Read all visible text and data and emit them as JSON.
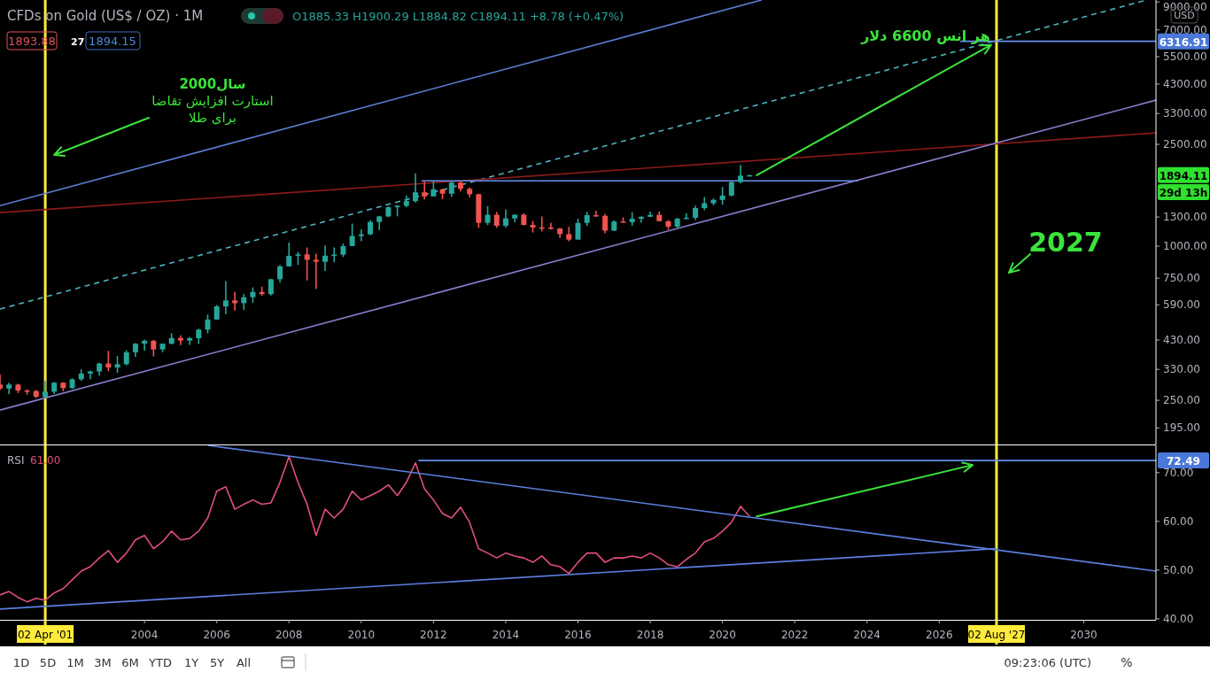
{
  "chart_data": [
    {
      "type": "candlestick",
      "title": "CFDs on Gold (US$ / OZ) · 1M",
      "subtitle": "O1885.33 H1900.29 L1884.82 C1894.11 +8.78 (+0.47%)",
      "ylabel": "USD",
      "log": "y",
      "tick_labels": "y",
      "xlim": [
        "2000-01",
        "2032-01"
      ],
      "ylim": [
        168,
        9160
      ],
      "yticks": [
        {
          "value": 195,
          "label": "195.00"
        },
        {
          "value": 250,
          "label": "250.00"
        },
        {
          "value": 330,
          "label": "330.00"
        },
        {
          "value": 430,
          "label": "430.00"
        },
        {
          "value": 590,
          "label": "590.00"
        },
        {
          "value": 750,
          "label": "750.00"
        },
        {
          "value": 1000,
          "label": "1000.00"
        },
        {
          "value": 1300,
          "label": "1300.00"
        },
        {
          "value": 2500,
          "label": "2500.00"
        },
        {
          "value": 3300,
          "label": "3300.00"
        },
        {
          "value": 4300,
          "label": "4300.00"
        },
        {
          "value": 5500,
          "label": "5500.00"
        },
        {
          "value": 7000,
          "label": "7000.00"
        },
        {
          "value": 9000,
          "label": "9000.00"
        }
      ],
      "x": [
        "2000-01",
        "2000-04",
        "2000-07",
        "2000-10",
        "2001-01",
        "2001-04",
        "2001-07",
        "2001-10",
        "2002-01",
        "2002-04",
        "2002-07",
        "2002-10",
        "2003-01",
        "2003-04",
        "2003-07",
        "2003-10",
        "2004-01",
        "2004-04",
        "2004-07",
        "2004-10",
        "2005-01",
        "2005-04",
        "2005-07",
        "2005-10",
        "2006-01",
        "2006-04",
        "2006-07",
        "2006-10",
        "2007-01",
        "2007-04",
        "2007-07",
        "2007-10",
        "2008-01",
        "2008-04",
        "2008-07",
        "2008-10",
        "2009-01",
        "2009-04",
        "2009-07",
        "2009-10",
        "2010-01",
        "2010-04",
        "2010-07",
        "2010-10",
        "2011-01",
        "2011-04",
        "2011-07",
        "2011-10",
        "2012-01",
        "2012-04",
        "2012-07",
        "2012-10",
        "2013-01",
        "2013-04",
        "2013-07",
        "2013-10",
        "2014-01",
        "2014-04",
        "2014-07",
        "2014-10",
        "2015-01",
        "2015-04",
        "2015-07",
        "2015-10",
        "2016-01",
        "2016-04",
        "2016-07",
        "2016-10",
        "2017-01",
        "2017-04",
        "2017-07",
        "2017-10",
        "2018-01",
        "2018-04",
        "2018-07",
        "2018-10",
        "2019-01",
        "2019-04",
        "2019-07",
        "2019-10",
        "2020-01",
        "2020-04",
        "2020-07",
        "2020-10"
      ],
      "ohlc": [
        [
          288,
          316,
          274,
          278
        ],
        [
          278,
          293,
          264,
          288
        ],
        [
          288,
          290,
          267,
          273
        ],
        [
          273,
          276,
          263,
          272
        ],
        [
          272,
          274,
          255,
          258
        ],
        [
          258,
          298,
          255,
          270
        ],
        [
          270,
          294,
          265,
          293
        ],
        [
          293,
          294,
          271,
          279
        ],
        [
          279,
          305,
          277,
          302
        ],
        [
          302,
          330,
          298,
          318
        ],
        [
          318,
          327,
          302,
          324
        ],
        [
          324,
          350,
          312,
          348
        ],
        [
          348,
          390,
          325,
          336
        ],
        [
          336,
          373,
          320,
          346
        ],
        [
          346,
          392,
          342,
          385
        ],
        [
          385,
          418,
          370,
          416
        ],
        [
          416,
          432,
          390,
          427
        ],
        [
          427,
          430,
          371,
          395
        ],
        [
          395,
          416,
          385,
          416
        ],
        [
          416,
          457,
          413,
          438
        ],
        [
          438,
          448,
          411,
          428
        ],
        [
          428,
          442,
          412,
          437
        ],
        [
          437,
          476,
          415,
          472
        ],
        [
          472,
          541,
          456,
          517
        ],
        [
          517,
          589,
          516,
          582
        ],
        [
          582,
          730,
          542,
          614
        ],
        [
          614,
          664,
          560,
          599
        ],
        [
          599,
          650,
          563,
          632
        ],
        [
          632,
          690,
          600,
          662
        ],
        [
          662,
          695,
          640,
          650
        ],
        [
          650,
          745,
          642,
          743
        ],
        [
          743,
          845,
          722,
          834
        ],
        [
          834,
          1033,
          832,
          917
        ],
        [
          917,
          950,
          845,
          929
        ],
        [
          929,
          988,
          735,
          885
        ],
        [
          885,
          935,
          681,
          869
        ],
        [
          869,
          1006,
          800,
          918
        ],
        [
          918,
          989,
          865,
          927
        ],
        [
          927,
          1024,
          908,
          1001
        ],
        [
          1001,
          1226,
          1000,
          1096
        ],
        [
          1096,
          1161,
          1045,
          1113
        ],
        [
          1113,
          1265,
          1106,
          1244
        ],
        [
          1244,
          1314,
          1157,
          1307
        ],
        [
          1307,
          1431,
          1300,
          1420
        ],
        [
          1420,
          1447,
          1308,
          1439
        ],
        [
          1439,
          1577,
          1418,
          1500
        ],
        [
          1500,
          1921,
          1480,
          1624
        ],
        [
          1624,
          1803,
          1523,
          1565
        ],
        [
          1565,
          1791,
          1563,
          1668
        ],
        [
          1668,
          1679,
          1527,
          1604
        ],
        [
          1604,
          1788,
          1558,
          1772
        ],
        [
          1772,
          1796,
          1635,
          1675
        ],
        [
          1675,
          1697,
          1555,
          1596
        ],
        [
          1596,
          1605,
          1180,
          1234
        ],
        [
          1234,
          1434,
          1208,
          1327
        ],
        [
          1327,
          1361,
          1180,
          1202
        ],
        [
          1202,
          1392,
          1182,
          1284
        ],
        [
          1284,
          1332,
          1240,
          1327
        ],
        [
          1327,
          1345,
          1206,
          1211
        ],
        [
          1211,
          1255,
          1131,
          1184
        ],
        [
          1184,
          1307,
          1142,
          1183
        ],
        [
          1183,
          1232,
          1162,
          1172
        ],
        [
          1172,
          1178,
          1077,
          1115
        ],
        [
          1115,
          1191,
          1046,
          1061
        ],
        [
          1061,
          1282,
          1061,
          1233
        ],
        [
          1233,
          1362,
          1200,
          1322
        ],
        [
          1322,
          1375,
          1305,
          1315
        ],
        [
          1315,
          1337,
          1123,
          1151
        ],
        [
          1151,
          1263,
          1146,
          1249
        ],
        [
          1249,
          1296,
          1240,
          1241
        ],
        [
          1241,
          1357,
          1204,
          1280
        ],
        [
          1280,
          1307,
          1236,
          1303
        ],
        [
          1303,
          1366,
          1302,
          1325
        ],
        [
          1325,
          1366,
          1250,
          1252
        ],
        [
          1252,
          1265,
          1160,
          1192
        ],
        [
          1192,
          1287,
          1180,
          1282
        ],
        [
          1282,
          1347,
          1276,
          1292
        ],
        [
          1292,
          1439,
          1266,
          1409
        ],
        [
          1409,
          1557,
          1382,
          1472
        ],
        [
          1472,
          1535,
          1445,
          1517
        ],
        [
          1517,
          1703,
          1451,
          1577
        ],
        [
          1577,
          1790,
          1567,
          1781
        ],
        [
          1781,
          2075,
          1757,
          1886
        ],
        [
          1885.33,
          1900.29,
          1884.82,
          1894.11
        ]
      ],
      "series": [
        {
          "type": "line",
          "color": "#5b7fd6",
          "x": [
            "2000-01",
            "2021-02"
          ],
          "values": [
            1440,
            9160
          ]
        },
        {
          "type": "line",
          "color": "#4fb3bf",
          "line_style": "dashed",
          "x": [
            "2000-01",
            "2031-09"
          ],
          "values": [
            568,
            9100
          ]
        },
        {
          "type": "line",
          "color": "#8b1a1a",
          "x": [
            "2000-01",
            "2032-01"
          ],
          "values": [
            1353,
            2770
          ]
        },
        {
          "type": "line",
          "color": "#8a7fd0",
          "x": [
            "2000-01",
            "2032-01"
          ],
          "values": [
            229,
            3720
          ]
        },
        {
          "type": "line",
          "color": "#6a8ff0",
          "x": [
            "2011-09",
            "2023-10"
          ],
          "values": [
            1800,
            1800
          ]
        },
        {
          "type": "line",
          "color": "#6a8ff0",
          "x": [
            "2026-08",
            "2032-01"
          ],
          "values": [
            6316.91,
            6316.91
          ]
        }
      ],
      "ref_lines": [
        {
          "axis": "x",
          "value": "2001-04-02",
          "label": "02 Apr '01",
          "color": "#ffeb3b"
        },
        {
          "axis": "x",
          "value": "2027-08-02",
          "label": "02 Aug '27",
          "color": "#ffeb3b"
        }
      ],
      "annotations": [
        {
          "text": "هر انس 6600 دلار",
          "x": "2027-08",
          "y": 6316.91
        },
        "سال2000\nاستارت افزایش تقاضا\nبرای طلا",
        {
          "text": "2027",
          "x": "2027-08",
          "y": 787
        },
        {
          "text": "6316.91",
          "x": "2032-01",
          "y": 6316.91
        },
        "1894.11",
        "29d 13h",
        "1893.88",
        "27",
        "1894.15"
      ]
    },
    {
      "type": "line",
      "title": "RSI",
      "subtitle": "61.00",
      "xlim": [
        "2000-01",
        "2032-01"
      ],
      "ylim": [
        39.8,
        75.6
      ],
      "xticks": [
        "2004",
        "2006",
        "2008",
        "2010",
        "2012",
        "2014",
        "2016",
        "2018",
        "2020",
        "2022",
        "2024",
        "2026",
        "2030"
      ],
      "yticks": [
        {
          "value": 40,
          "label": "40.00"
        },
        {
          "value": 50,
          "label": "50.00"
        },
        {
          "value": 60,
          "label": "60.00"
        },
        {
          "value": 70,
          "label": "70.00"
        }
      ],
      "series": [
        {
          "color": "#e0507a",
          "x": [
            "2000-01",
            "2000-04",
            "2000-07",
            "2000-10",
            "2001-01",
            "2001-04",
            "2001-07",
            "2001-10",
            "2002-01",
            "2002-04",
            "2002-07",
            "2002-10",
            "2003-01",
            "2003-04",
            "2003-07",
            "2003-10",
            "2004-01",
            "2004-04",
            "2004-07",
            "2004-10",
            "2005-01",
            "2005-04",
            "2005-07",
            "2005-10",
            "2006-01",
            "2006-04",
            "2006-07",
            "2006-10",
            "2007-01",
            "2007-04",
            "2007-07",
            "2007-10",
            "2008-01",
            "2008-04",
            "2008-07",
            "2008-10",
            "2009-01",
            "2009-04",
            "2009-07",
            "2009-10",
            "2010-01",
            "2010-04",
            "2010-07",
            "2010-10",
            "2011-01",
            "2011-04",
            "2011-07",
            "2011-10",
            "2012-01",
            "2012-04",
            "2012-07",
            "2012-10",
            "2013-01",
            "2013-04",
            "2013-07",
            "2013-10",
            "2014-01",
            "2014-04",
            "2014-07",
            "2014-10",
            "2015-01",
            "2015-04",
            "2015-07",
            "2015-10",
            "2016-01",
            "2016-04",
            "2016-07",
            "2016-10",
            "2017-01",
            "2017-04",
            "2017-07",
            "2017-10",
            "2018-01",
            "2018-04",
            "2018-07",
            "2018-10",
            "2019-01",
            "2019-04",
            "2019-07",
            "2019-10",
            "2020-01",
            "2020-04",
            "2020-07",
            "2020-10"
          ],
          "values": [
            44.9,
            45.6,
            44.4,
            43.5,
            44.2,
            43.8,
            45.3,
            46.2,
            48,
            49.8,
            50.7,
            52.5,
            54,
            51.6,
            53.5,
            56.2,
            57.1,
            54.4,
            55.8,
            58,
            56.2,
            56.5,
            58,
            60.7,
            66.2,
            67.1,
            62.5,
            63.5,
            64.4,
            63.5,
            63.8,
            68,
            73.3,
            68,
            63.5,
            57.1,
            62.5,
            60.7,
            62.5,
            66.2,
            64.4,
            65.3,
            66.2,
            67.5,
            65.3,
            68,
            72,
            66.7,
            64.4,
            61.6,
            60.7,
            62.9,
            59.8,
            54.4,
            53.5,
            52.5,
            53.5,
            52.9,
            52.5,
            51.6,
            52.9,
            51.1,
            50.7,
            49.3,
            51.6,
            53.5,
            53.5,
            51.6,
            52.5,
            52.5,
            52.9,
            52.5,
            53.5,
            52.5,
            51.1,
            50.7,
            52.2,
            53.5,
            55.8,
            56.5,
            58,
            59.8,
            63.1,
            61.0
          ]
        },
        {
          "color": "#5b7fe0",
          "x": [
            "2005-10",
            "2032-01"
          ],
          "values": [
            75.6,
            49.8
          ]
        },
        {
          "color": "#5b7fe0",
          "x": [
            "2000-01",
            "2027-08"
          ],
          "values": [
            42.0,
            54.4
          ]
        },
        {
          "color": "#6a8ff0",
          "x": [
            "2011-08",
            "2032-01"
          ],
          "values": [
            72.49,
            72.49
          ]
        }
      ],
      "annotations": [
        {
          "text": "72.49",
          "x": "2032-01",
          "y": 72.49
        },
        "1D",
        "5D",
        "1M",
        "3M",
        "6M",
        "YTD",
        "1Y",
        "5Y",
        "All",
        "09:23:06 (UTC)",
        "%"
      ]
    }
  ]
}
